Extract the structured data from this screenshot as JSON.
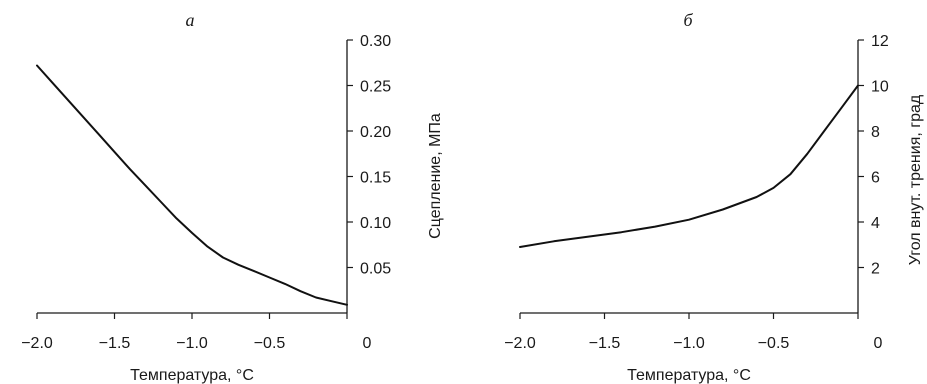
{
  "chart_data": [
    {
      "type": "line",
      "panel_label": "а",
      "title": "",
      "xlabel": "Температура, °C",
      "ylabel": "Сцепление, МПа",
      "xlim": [
        -2.0,
        0
      ],
      "ylim": [
        0,
        0.3
      ],
      "x_ticks": [
        -2.0,
        -1.5,
        -1.0,
        -0.5,
        0
      ],
      "x_tick_labels": [
        "−2.0",
        "−1.5",
        "−1.0",
        "−0.5",
        "0"
      ],
      "y_ticks": [
        0.05,
        0.1,
        0.15,
        0.2,
        0.25,
        0.3
      ],
      "y_tick_labels": [
        "0.05",
        "0.10",
        "0.15",
        "0.20",
        "0.25",
        "0.30"
      ],
      "y_axis_side": "right",
      "grid": false,
      "series": [
        {
          "x": [
            -2.0,
            -1.9,
            -1.8,
            -1.7,
            -1.6,
            -1.5,
            -1.4,
            -1.3,
            -1.2,
            -1.1,
            -1.0,
            -0.9,
            -0.8,
            -0.7,
            -0.6,
            -0.5,
            -0.4,
            -0.3,
            -0.2,
            -0.1,
            0.0
          ],
          "y": [
            0.272,
            0.253,
            0.234,
            0.215,
            0.196,
            0.177,
            0.158,
            0.14,
            0.122,
            0.104,
            0.088,
            0.073,
            0.061,
            0.053,
            0.046,
            0.039,
            0.032,
            0.024,
            0.017,
            0.013,
            0.009
          ]
        }
      ]
    },
    {
      "type": "line",
      "panel_label": "б",
      "title": "",
      "xlabel": "Температура, °C",
      "ylabel": "Угол внут. трения, град",
      "xlim": [
        -2.0,
        0
      ],
      "ylim": [
        0,
        12
      ],
      "x_ticks": [
        -2.0,
        -1.5,
        -1.0,
        -0.5,
        0
      ],
      "x_tick_labels": [
        "−2.0",
        "−1.5",
        "−1.0",
        "−0.5",
        "0"
      ],
      "y_ticks": [
        2,
        4,
        6,
        8,
        10,
        12
      ],
      "y_tick_labels": [
        "2",
        "4",
        "6",
        "8",
        "10",
        "12"
      ],
      "y_axis_side": "right",
      "grid": false,
      "series": [
        {
          "x": [
            -2.0,
            -1.8,
            -1.6,
            -1.4,
            -1.2,
            -1.0,
            -0.8,
            -0.6,
            -0.5,
            -0.4,
            -0.3,
            -0.2,
            -0.1,
            0.0
          ],
          "y": [
            2.9,
            3.15,
            3.35,
            3.55,
            3.8,
            4.1,
            4.55,
            5.1,
            5.5,
            6.1,
            7.0,
            8.0,
            9.0,
            10.0
          ]
        }
      ]
    }
  ]
}
